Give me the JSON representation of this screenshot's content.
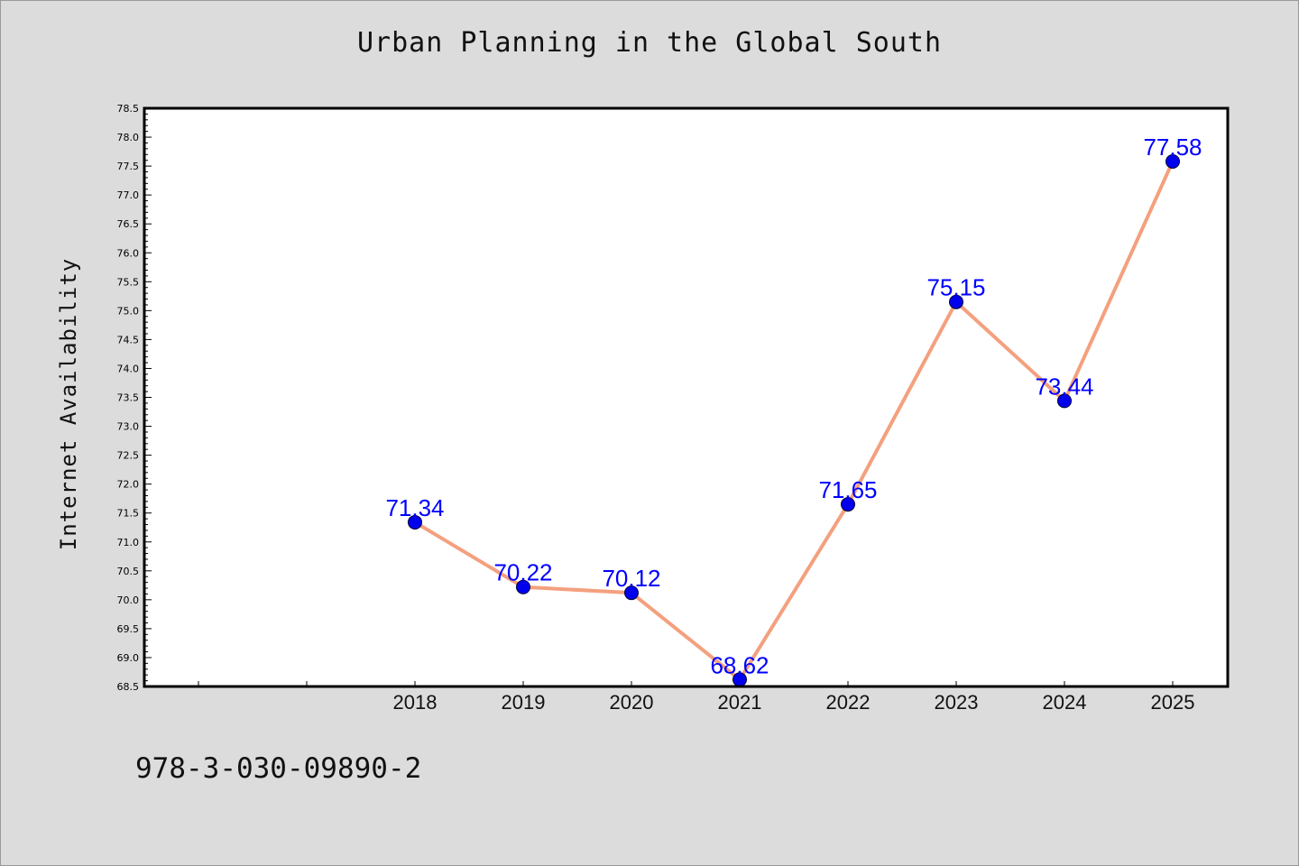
{
  "chart_data": {
    "type": "line",
    "title": "Urban Planning in the Global South",
    "xlabel": "",
    "ylabel": "Internet Availability",
    "categories": [
      "2018",
      "2019",
      "2020",
      "2021",
      "2022",
      "2023",
      "2024",
      "2025"
    ],
    "series": [
      {
        "values": [
          71.34,
          70.22,
          70.12,
          68.62,
          71.65,
          75.15,
          73.44,
          77.58
        ],
        "labels": [
          "71.34",
          "70.22",
          "70.12",
          "68.62",
          "71.65",
          "75.15",
          "73.44",
          "77.58"
        ],
        "line_color": "#f4a07e",
        "marker_color": "#0000ee"
      }
    ],
    "ylim": [
      68.5,
      78.5
    ],
    "ytick_step": 0.5,
    "grid": false,
    "legend": "none",
    "label_color": "#0000ff"
  },
  "footer": {
    "isbn": "978-3-030-09890-2"
  }
}
